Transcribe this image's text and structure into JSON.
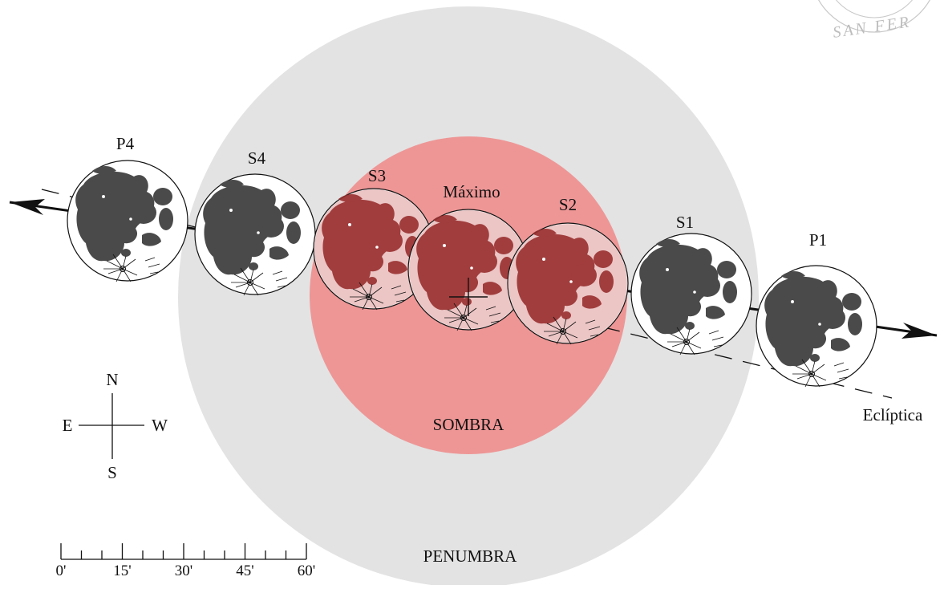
{
  "colors": {
    "penumbra": "#e3e3e3",
    "umbra": "#ee9696",
    "moon_normal": "#4a4a4a",
    "moon_eclipsed": "#8c2e2e",
    "moon_highlands": "#ffffff",
    "line": "#111111"
  },
  "labels": {
    "penumbra": "PENUMBRA",
    "umbra": "SOMBRA",
    "ecliptic": "Eclíptica"
  },
  "phases": [
    {
      "id": "P4",
      "label": "P4",
      "eclipsed": false
    },
    {
      "id": "S4",
      "label": "S4",
      "eclipsed": false
    },
    {
      "id": "S3",
      "label": "S3",
      "eclipsed": true
    },
    {
      "id": "max",
      "label": "Máximo",
      "eclipsed": true
    },
    {
      "id": "S2",
      "label": "S2",
      "eclipsed": true
    },
    {
      "id": "S1",
      "label": "S1",
      "eclipsed": false
    },
    {
      "id": "P1",
      "label": "P1",
      "eclipsed": false
    }
  ],
  "compass": {
    "north": "N",
    "south": "S",
    "east": "E",
    "west": "W"
  },
  "scale": {
    "ticks": [
      "0'",
      "15'",
      "30'",
      "45'",
      "60'"
    ]
  },
  "watermark": "SAN FER"
}
